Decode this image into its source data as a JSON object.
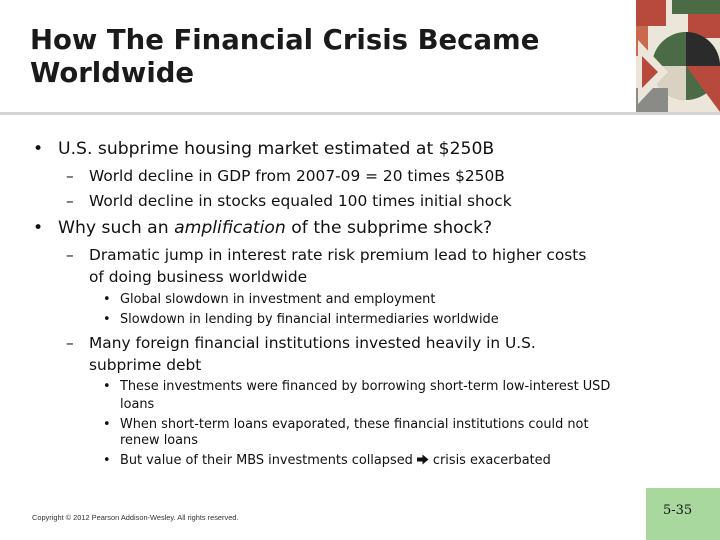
{
  "slide": {
    "title_line1": "How The Financial Crisis Became",
    "title_line2": "Worldwide",
    "bullets": {
      "b1_text": "U.S. subprime housing market estimated at $250B",
      "b1_sub1": "World decline in GDP from 2007-09 = 20 times $250B",
      "b1_sub2": "World decline in stocks equaled 100 times initial shock",
      "b2_pre": "Why such an ",
      "b2_em": "amplification",
      "b2_post": " of the subprime shock?",
      "b2_sub1_line1": "Dramatic jump in interest rate risk premium lead to higher costs",
      "b2_sub1_line2": "of doing business worldwide",
      "b2_sub1_a": "Global slowdown in investment and employment",
      "b2_sub1_b": "Slowdown in lending by financial intermediaries worldwide",
      "b2_sub2_line1": "Many foreign financial institutions invested heavily in U.S.",
      "b2_sub2_line2": "subprime debt",
      "b2_sub2_a_line1": "These investments were financed by borrowing short-term low-interest USD",
      "b2_sub2_a_line2": "loans",
      "b2_sub2_b_line1": "When short-term loans evaporated, these financial institutions could not",
      "b2_sub2_b_line2": "renew loans",
      "b2_sub2_c_pre": "But value of their MBS investments collapsed ",
      "b2_sub2_c_post": "crisis exacerbated"
    },
    "markers": {
      "bullet": "•",
      "dash": "–"
    },
    "footer": {
      "copyright": "Copyright © 2012 Pearson Addison-Wesley. All rights reserved.",
      "page_number": "5-35"
    },
    "arrow_icon": "right-arrow-icon",
    "colors": {
      "rule": "#d4d4d4",
      "page_tab": "#a8d89e",
      "art_red": "#b84a3d",
      "art_green": "#4a6b45",
      "art_cream": "#ece6da",
      "art_dark": "#2b2b2b"
    }
  }
}
